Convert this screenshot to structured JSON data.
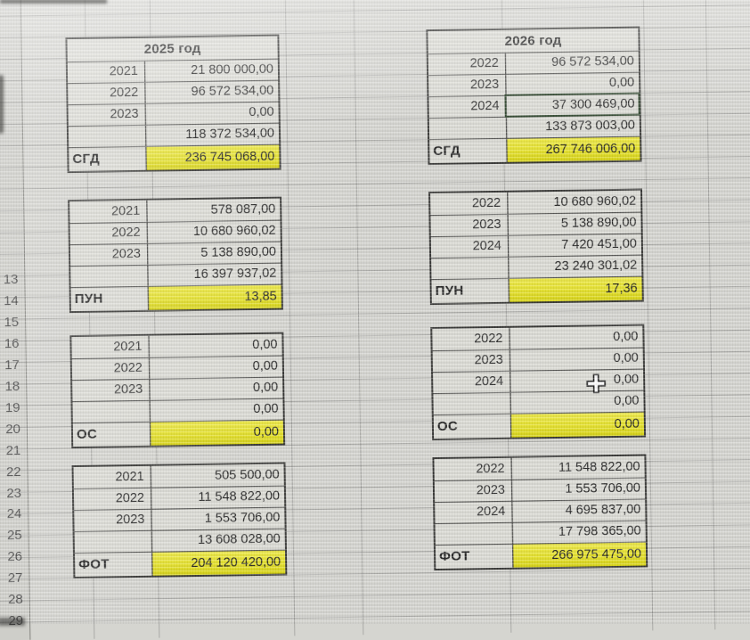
{
  "sheet": {
    "row_numbers": [
      "13",
      "14",
      "15",
      "16",
      "17",
      "18",
      "19",
      "20",
      "21",
      "22",
      "23",
      "24",
      "25",
      "26",
      "27",
      "28",
      "29"
    ],
    "tables": [
      {
        "title": "2025 год",
        "blocks": [
          {
            "rows": [
              [
                "2021",
                "21 800 000,00"
              ],
              [
                "2022",
                "96 572 534,00"
              ],
              [
                "2023",
                "0,00"
              ],
              [
                "",
                "118 372 534,00"
              ]
            ],
            "total": {
              "label": "СГД",
              "value": "236 745 068,00"
            }
          },
          {
            "rows": [
              [
                "2021",
                "578 087,00"
              ],
              [
                "2022",
                "10 680 960,02"
              ],
              [
                "2023",
                "5 138 890,00"
              ],
              [
                "",
                "16 397 937,02"
              ]
            ],
            "total": {
              "label": "ПУН",
              "value": "13,85"
            }
          },
          {
            "rows": [
              [
                "2021",
                "0,00"
              ],
              [
                "2022",
                "0,00"
              ],
              [
                "2023",
                "0,00"
              ],
              [
                "",
                "0,00"
              ]
            ],
            "total": {
              "label": "ОС",
              "value": "0,00"
            }
          },
          {
            "rows": [
              [
                "2021",
                "505 500,00"
              ],
              [
                "2022",
                "11 548 822,00"
              ],
              [
                "2023",
                "1 553 706,00"
              ],
              [
                "",
                "13 608 028,00"
              ]
            ],
            "total": {
              "label": "ФОТ",
              "value": "204 120 420,00"
            }
          }
        ]
      },
      {
        "title": "2026 год",
        "blocks": [
          {
            "rows": [
              [
                "2022",
                "96 572 534,00"
              ],
              [
                "2023",
                "0,00"
              ],
              [
                "2024",
                "37 300 469,00"
              ],
              [
                "",
                "133 873 003,00"
              ]
            ],
            "total": {
              "label": "СГД",
              "value": "267 746 006,00"
            }
          },
          {
            "rows": [
              [
                "2022",
                "10 680 960,02"
              ],
              [
                "2023",
                "5 138 890,00"
              ],
              [
                "2024",
                "7 420 451,00"
              ],
              [
                "",
                "23 240 301,02"
              ]
            ],
            "total": {
              "label": "ПУН",
              "value": "17,36"
            }
          },
          {
            "rows": [
              [
                "2022",
                "0,00"
              ],
              [
                "2023",
                "0,00"
              ],
              [
                "2024",
                "0,00"
              ],
              [
                "",
                "0,00"
              ]
            ],
            "total": {
              "label": "ОС",
              "value": "0,00"
            }
          },
          {
            "rows": [
              [
                "2022",
                "11 548 822,00"
              ],
              [
                "2023",
                "1 553 706,00"
              ],
              [
                "2024",
                "4 695 837,00"
              ],
              [
                "",
                "17 798 365,00"
              ]
            ],
            "total": {
              "label": "ФОТ",
              "value": "266 975 475,00"
            }
          }
        ]
      }
    ],
    "selection": {
      "table_index": 1,
      "block_index": 0,
      "row_index": 2,
      "state": "active-cell-with-fill-handle"
    },
    "cursor": {
      "table_index": 1,
      "block_index": 2,
      "row_index": 2,
      "type": "excel-plus-cursor"
    }
  },
  "colors": {
    "highlight_yellow": "#e5e12e",
    "selection_border": "#2e452c",
    "table_border": "#383836",
    "background": "#d5d5d0",
    "text": "#232323"
  }
}
